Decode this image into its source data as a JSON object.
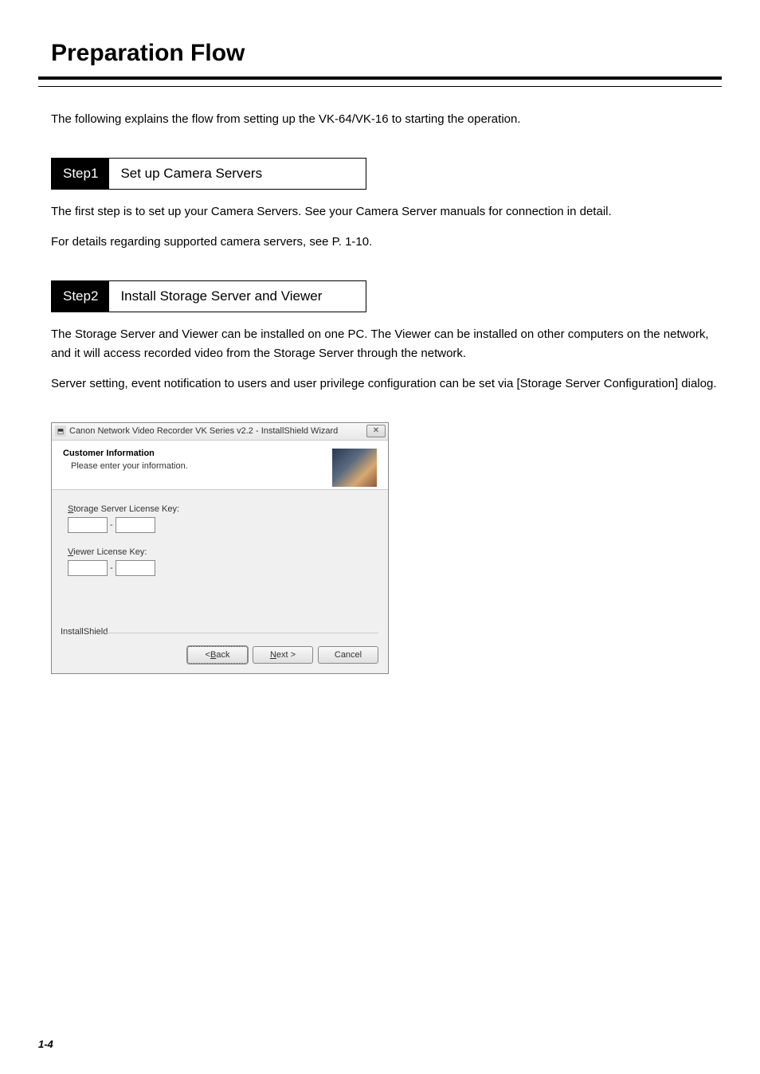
{
  "page": {
    "title": "Preparation Flow",
    "intro": "The following explains the flow from setting up the VK-64/VK-16 to starting the operation.",
    "pageNumber": "1-4"
  },
  "step1": {
    "label": "Step1",
    "title": "Set up Camera Servers",
    "body1": "The first step is to set up your Camera Servers. See your Camera Server manuals for connection in detail.",
    "body2": "For details regarding supported camera servers, see P. 1-10."
  },
  "step2": {
    "label": "Step2",
    "title": "Install Storage Server and Viewer",
    "body1": "The Storage Server and Viewer can be installed on one PC. The Viewer can be installed on other computers on the network, and it will access recorded video from the Storage Server through the network.",
    "body2_pre": "Server setting, event notification to users and user privilege configuration can be set via [",
    "body2_bold": "Storage Server Configuration",
    "body2_post": "] dialog."
  },
  "dialog": {
    "titlebar": "Canon Network Video Recorder VK Series v2.2 - InstallShield Wizard",
    "close": "✕",
    "header_title": "Customer Information",
    "header_sub": "Please enter your information.",
    "storage_label_pre": "S",
    "storage_label_post": "torage Server License Key:",
    "viewer_label_pre": "V",
    "viewer_label_post": "iewer License Key:",
    "dash": "-",
    "fieldset": "InstallShield",
    "back_pre": "< ",
    "back_u": "B",
    "back_post": "ack",
    "next_u": "N",
    "next_post": "ext >",
    "cancel": "Cancel",
    "colors": {
      "page_bg": "#ffffff",
      "dialog_bg": "#f0f0f0",
      "border": "#888888",
      "titlebar_grad_top": "#f8f8f8",
      "titlebar_grad_bot": "#e8e8e8"
    }
  }
}
